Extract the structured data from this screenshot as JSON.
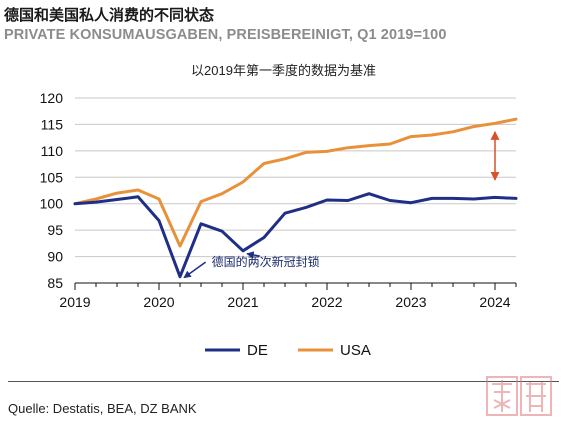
{
  "header": {
    "title": "德国和美国私人消费的不同状态",
    "subtitle": "PRIVATE KONSUMAUSGABEN, PREISBEREINIGT, Q1 2019=100",
    "note": "以2019年第一季度的数据为基准"
  },
  "footer": {
    "source": "Quelle: Destatis, BEA, DZ BANK"
  },
  "colors": {
    "de": "#1f2f86",
    "usa": "#e8913a",
    "arrow": "#d9502a",
    "stamp": "#e07a7a"
  },
  "chart_data": {
    "type": "line",
    "title": "",
    "xlabel": "",
    "ylabel": "",
    "xlim": [
      2019.0,
      2024.25
    ],
    "ylim": [
      85,
      120
    ],
    "yticks": [
      85,
      90,
      95,
      100,
      105,
      110,
      115,
      120
    ],
    "xticks": [
      2019,
      2020,
      2021,
      2022,
      2023,
      2024
    ],
    "grid": "horizontal",
    "legend": "bottom",
    "x": [
      2019.0,
      2019.25,
      2019.5,
      2019.75,
      2020.0,
      2020.25,
      2020.5,
      2020.75,
      2021.0,
      2021.25,
      2021.5,
      2021.75,
      2022.0,
      2022.25,
      2022.5,
      2022.75,
      2023.0,
      2023.25,
      2023.5,
      2023.75,
      2024.0,
      2024.25
    ],
    "series": [
      {
        "name": "DE",
        "values": [
          100.0,
          100.3,
          100.8,
          101.3,
          96.8,
          86.2,
          96.2,
          94.8,
          91.1,
          93.6,
          98.2,
          99.3,
          100.7,
          100.6,
          101.9,
          100.6,
          100.2,
          101.0,
          101.0,
          100.9,
          101.2,
          101.0
        ]
      },
      {
        "name": "USA",
        "values": [
          100.0,
          100.9,
          102.0,
          102.6,
          100.9,
          92.0,
          100.4,
          101.9,
          104.1,
          107.6,
          108.5,
          109.7,
          109.9,
          110.6,
          111.0,
          111.3,
          112.7,
          113.0,
          113.6,
          114.6,
          115.2,
          116.0
        ]
      }
    ],
    "annotations": [
      {
        "text": "德国的两次新冠封锁"
      }
    ]
  },
  "stamp": {
    "text": "楚榕"
  }
}
